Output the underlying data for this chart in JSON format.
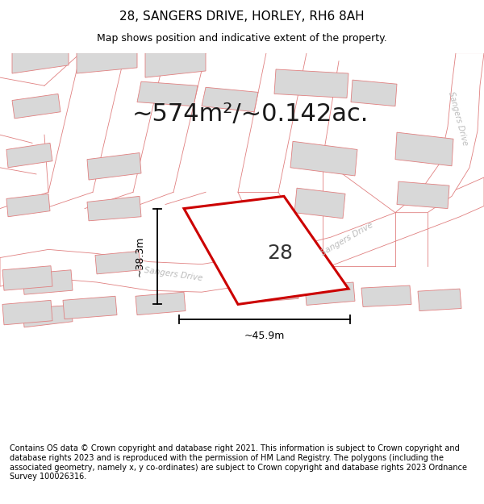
{
  "title_line1": "28, SANGERS DRIVE, HORLEY, RH6 8AH",
  "title_line2": "Map shows position and indicative extent of the property.",
  "area_text": "~574m²/~0.142ac.",
  "width_label": "~45.9m",
  "height_label": "~38.3m",
  "property_number": "28",
  "footer_text": "Contains OS data © Crown copyright and database right 2021. This information is subject to Crown copyright and database rights 2023 and is reproduced with the permission of HM Land Registry. The polygons (including the associated geometry, namely x, y co-ordinates) are subject to Crown copyright and database rights 2023 Ordnance Survey 100026316.",
  "bg_color": "#ffffff",
  "map_bg": "#f7f7f7",
  "building_fill": "#d8d8d8",
  "plot_line_color": "#cc0000",
  "road_line_color": "#e08080",
  "dim_line_color": "#000000",
  "road_text_color": "#bbbbbb",
  "title_fontsize": 11,
  "subtitle_fontsize": 9,
  "area_fontsize": 22,
  "dim_fontsize": 9,
  "property_num_fontsize": 18,
  "footer_fontsize": 7
}
